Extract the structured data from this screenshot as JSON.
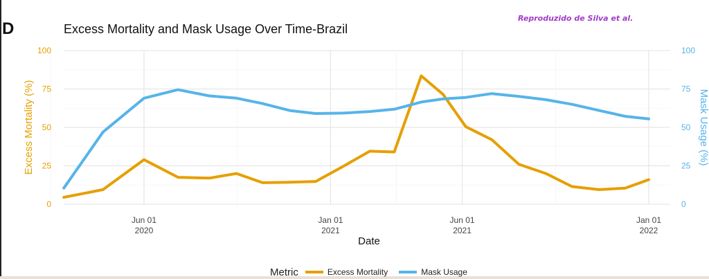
{
  "figure": {
    "panel_letter": "D",
    "title": "Excess Mortality and Mask Usage Over Time-Brazil",
    "credit": "Reproduzido de Silva et al."
  },
  "chart_data": {
    "type": "line",
    "title": "Excess Mortality and Mask Usage Over Time-Brazil",
    "xlabel": "Date",
    "ylabel": "Excess Mortality (%)",
    "ylabel_right": "Mask Usage (%)",
    "ylim": [
      0,
      100
    ],
    "yticks": [
      0,
      25,
      50,
      75,
      100
    ],
    "xticks": [
      {
        "date": "2020-06-01",
        "line1": "Jun 01",
        "line2": "2020"
      },
      {
        "date": "2021-01-01",
        "line1": "Jan 01",
        "line2": "2021"
      },
      {
        "date": "2021-06-01",
        "line1": "Jun 01",
        "line2": "2021"
      },
      {
        "date": "2022-01-01",
        "line1": "Jan 01",
        "line2": "2022"
      }
    ],
    "x": [
      "2020-03-01",
      "2020-04-15",
      "2020-06-01",
      "2020-07-10",
      "2020-08-15",
      "2020-09-15",
      "2020-10-15",
      "2020-11-15",
      "2020-12-15",
      "2021-01-15",
      "2021-02-15",
      "2021-03-15",
      "2021-04-15",
      "2021-05-10",
      "2021-06-05",
      "2021-07-05",
      "2021-08-05",
      "2021-09-05",
      "2021-10-05",
      "2021-11-05",
      "2021-12-05",
      "2022-01-01"
    ],
    "grid": true,
    "legend_position": "bottom",
    "legend_title": "Metric",
    "series": [
      {
        "name": "Excess Mortality",
        "axis": "left",
        "color": "#e69f00",
        "values": [
          4.5,
          9.5,
          29,
          17.5,
          17,
          20,
          14,
          14.3,
          14.8,
          24.5,
          34.5,
          34,
          83.5,
          71.5,
          50.5,
          42,
          26,
          20,
          11.5,
          9.5,
          10.5,
          16
        ]
      },
      {
        "name": "Mask Usage",
        "axis": "right",
        "color": "#56b4e9",
        "values": [
          10.5,
          47,
          69,
          74.5,
          70.5,
          69,
          65.5,
          61,
          59,
          59.3,
          60.3,
          61.8,
          66.5,
          68.5,
          69.5,
          72,
          70.2,
          68,
          65,
          61,
          57.2,
          55.5
        ]
      }
    ]
  }
}
